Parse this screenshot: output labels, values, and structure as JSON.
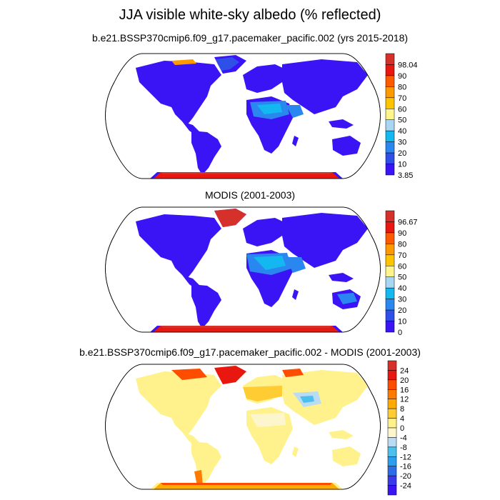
{
  "title": "JJA visible white-sky albedo (% reflected)",
  "panels": [
    {
      "title": "b.e21.BSSP370cmip6.f09_g17.pacemaker_pacific.002 (yrs 2015-2018)",
      "colorbar": {
        "labels": [
          "98.04",
          "90",
          "80",
          "70",
          "60",
          "50",
          "40",
          "30",
          "20",
          "10",
          "3.85"
        ],
        "colors": [
          "#d6302a",
          "#e8170f",
          "#ff5a00",
          "#ff9900",
          "#ffc400",
          "#fff58c",
          "#a6d6f2",
          "#14b8f0",
          "#2b87f0",
          "#2e4fe8",
          "#3a14f5"
        ]
      }
    },
    {
      "title": "MODIS (2001-2003)",
      "colorbar": {
        "labels": [
          "96.67",
          "90",
          "80",
          "70",
          "60",
          "50",
          "40",
          "30",
          "20",
          "10",
          "0"
        ],
        "colors": [
          "#d6302a",
          "#e8170f",
          "#ff5a00",
          "#ff9900",
          "#ffc400",
          "#fff58c",
          "#a6d6f2",
          "#14b8f0",
          "#2b87f0",
          "#2e4fe8",
          "#3a14f5"
        ]
      }
    },
    {
      "title": "b.e21.BSSP370cmip6.f09_g17.pacemaker_pacific.002 - MODIS (2001-2003)",
      "colorbar": {
        "labels": [
          "24",
          "20",
          "16",
          "12",
          "8",
          "4",
          "0",
          "-4",
          "-8",
          "-12",
          "-16",
          "-20",
          "-24"
        ],
        "colors": [
          "#d6302a",
          "#e8170f",
          "#ff4d00",
          "#ff7a00",
          "#ffaa00",
          "#ffcc33",
          "#fff28c",
          "#fdf6cc",
          "#b9dcf2",
          "#4dbfee",
          "#2b9ef0",
          "#2b6de8",
          "#3a3aec",
          "#3a14f5"
        ]
      }
    }
  ]
}
